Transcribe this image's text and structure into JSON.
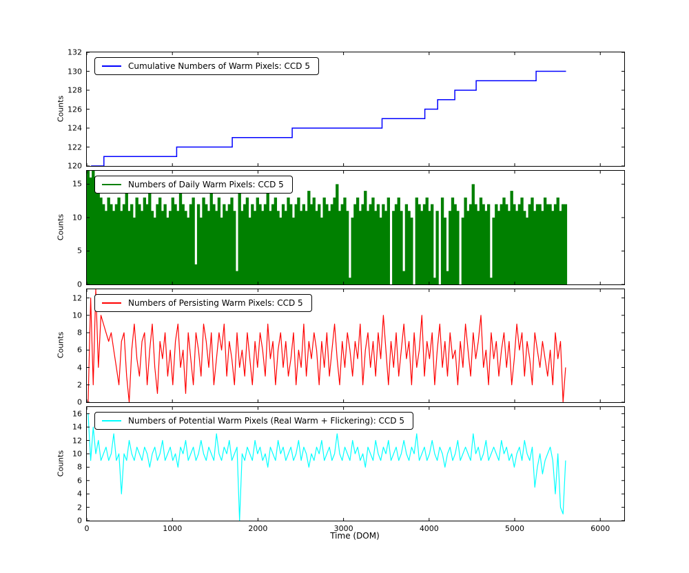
{
  "figure": {
    "background": "#ffffff",
    "xlabel": "Time (DOM)",
    "xlim": [
      0,
      6280
    ],
    "x_ticks": [
      0,
      1000,
      2000,
      3000,
      4000,
      5000,
      6000
    ]
  },
  "chart_data": [
    {
      "type": "step",
      "name": "cumulative-warm-pixels",
      "legend_label": "Cumulative Numbers of Warm Pixels: CCD 5",
      "color": "#0000ff",
      "ylabel": "Counts",
      "ylim": [
        120,
        132
      ],
      "yticks": [
        120,
        122,
        124,
        126,
        128,
        130,
        132
      ],
      "legend_position": "upper left",
      "grid": false,
      "points": [
        [
          50,
          120
        ],
        [
          200,
          121
        ],
        [
          1050,
          122
        ],
        [
          1700,
          123
        ],
        [
          2400,
          124
        ],
        [
          3450,
          125
        ],
        [
          3950,
          126
        ],
        [
          4100,
          127
        ],
        [
          4300,
          128
        ],
        [
          4550,
          129
        ],
        [
          5250,
          130
        ],
        [
          5600,
          130
        ]
      ]
    },
    {
      "type": "bar",
      "name": "daily-warm-pixels",
      "legend_label": "Numbers of Daily Warm Pixels: CCD 5",
      "color": "#008000",
      "ylabel": "Counts",
      "ylim": [
        0,
        17
      ],
      "yticks": [
        0,
        5,
        10,
        15
      ],
      "legend_position": "upper left",
      "grid": false,
      "x_start": 15,
      "x_step": 30,
      "values": [
        17,
        16,
        17,
        15,
        14,
        13,
        12,
        11,
        13,
        12,
        11,
        12,
        13,
        11,
        12,
        14,
        11,
        12,
        10,
        13,
        12,
        11,
        13,
        12,
        15,
        11,
        10,
        12,
        13,
        11,
        12,
        10,
        11,
        13,
        12,
        11,
        14,
        12,
        11,
        10,
        12,
        13,
        3,
        12,
        10,
        13,
        12,
        11,
        15,
        12,
        11,
        13,
        10,
        12,
        11,
        12,
        13,
        11,
        2,
        14,
        11,
        12,
        13,
        10,
        12,
        11,
        13,
        12,
        11,
        12,
        15,
        11,
        12,
        13,
        11,
        10,
        12,
        11,
        13,
        12,
        10,
        12,
        13,
        11,
        12,
        11,
        14,
        12,
        13,
        11,
        12,
        10,
        13,
        12,
        11,
        12,
        13,
        15,
        11,
        12,
        13,
        11,
        1,
        10,
        12,
        13,
        11,
        12,
        14,
        11,
        12,
        13,
        11,
        12,
        10,
        12,
        11,
        13,
        0,
        11,
        12,
        13,
        11,
        2,
        12,
        11,
        10,
        0,
        13,
        12,
        11,
        12,
        13,
        11,
        12,
        1,
        11,
        0,
        13,
        10,
        2,
        11,
        13,
        12,
        11,
        0,
        10,
        13,
        11,
        12,
        15,
        12,
        11,
        13,
        12,
        11,
        12,
        1,
        10,
        12,
        11,
        12,
        13,
        12,
        11,
        14,
        12,
        11,
        12,
        13,
        11,
        10,
        12,
        13,
        11,
        12,
        12,
        11,
        13,
        12,
        12,
        11,
        12,
        13,
        11,
        12,
        12
      ]
    },
    {
      "type": "line",
      "name": "persisting-warm-pixels",
      "legend_label": "Numbers of Persisting Warm Pixels: CCD 5",
      "color": "#ff0000",
      "ylabel": "Counts",
      "ylim": [
        0,
        13
      ],
      "yticks": [
        0,
        2,
        4,
        6,
        8,
        10,
        12
      ],
      "legend_position": "upper left",
      "grid": false,
      "x_start": 15,
      "x_step": 30,
      "values": [
        0,
        12,
        2,
        13,
        4,
        10,
        9,
        8,
        7,
        8,
        6,
        4,
        2,
        7,
        8,
        3,
        0,
        6,
        9,
        5,
        3,
        7,
        8,
        2,
        6,
        9,
        4,
        1,
        7,
        5,
        8,
        3,
        6,
        2,
        7,
        9,
        4,
        6,
        1,
        8,
        5,
        2,
        8,
        6,
        3,
        9,
        7,
        4,
        8,
        2,
        5,
        8,
        6,
        9,
        3,
        7,
        5,
        2,
        8,
        4,
        6,
        3,
        8,
        5,
        2,
        7,
        4,
        8,
        6,
        3,
        9,
        5,
        7,
        2,
        6,
        8,
        4,
        7,
        3,
        5,
        8,
        2,
        6,
        4,
        9,
        3,
        7,
        5,
        8,
        6,
        2,
        7,
        4,
        8,
        3,
        6,
        9,
        5,
        2,
        7,
        4,
        8,
        6,
        3,
        7,
        5,
        9,
        2,
        6,
        8,
        4,
        7,
        3,
        8,
        5,
        10,
        6,
        2,
        7,
        4,
        8,
        3,
        6,
        9,
        5,
        7,
        2,
        8,
        4,
        6,
        10,
        3,
        7,
        5,
        8,
        2,
        6,
        9,
        4,
        7,
        3,
        8,
        5,
        6,
        2,
        7,
        4,
        9,
        6,
        3,
        8,
        5,
        7,
        10,
        4,
        6,
        2,
        8,
        5,
        7,
        3,
        6,
        8,
        4,
        7,
        2,
        5,
        9,
        6,
        8,
        3,
        7,
        5,
        2,
        8,
        6,
        4,
        7,
        5,
        3,
        6,
        2,
        8,
        5,
        7,
        0,
        4
      ]
    },
    {
      "type": "line",
      "name": "potential-warm-pixels",
      "legend_label": "Numbers of Potential Warm Pixels (Real Warm + Flickering): CCD 5",
      "color": "#00ffff",
      "ylabel": "Counts",
      "ylim": [
        0,
        17
      ],
      "yticks": [
        0,
        2,
        4,
        6,
        8,
        10,
        12,
        14,
        16
      ],
      "legend_position": "upper left",
      "grid": false,
      "show_x_labels": true,
      "x_start": 15,
      "x_step": 30,
      "values": [
        16,
        9,
        14,
        10,
        12,
        9,
        10,
        11,
        9,
        10,
        13,
        9,
        10,
        4,
        10,
        9,
        12,
        10,
        9,
        11,
        10,
        9,
        11,
        10,
        8,
        10,
        11,
        9,
        10,
        12,
        9,
        10,
        11,
        9,
        10,
        8,
        11,
        10,
        12,
        9,
        10,
        11,
        9,
        10,
        12,
        10,
        9,
        11,
        10,
        9,
        13,
        10,
        9,
        11,
        10,
        12,
        9,
        10,
        11,
        0,
        10,
        9,
        11,
        10,
        9,
        12,
        10,
        11,
        9,
        10,
        8,
        11,
        10,
        9,
        12,
        10,
        11,
        9,
        10,
        11,
        9,
        10,
        12,
        9,
        11,
        10,
        8,
        10,
        9,
        11,
        10,
        12,
        9,
        10,
        11,
        9,
        10,
        13,
        10,
        9,
        11,
        10,
        9,
        12,
        10,
        11,
        9,
        10,
        8,
        11,
        10,
        9,
        12,
        10,
        9,
        11,
        10,
        12,
        9,
        10,
        11,
        9,
        10,
        12,
        10,
        9,
        11,
        10,
        13,
        9,
        10,
        11,
        9,
        10,
        12,
        10,
        9,
        11,
        10,
        8,
        10,
        11,
        9,
        10,
        12,
        9,
        10,
        11,
        10,
        9,
        13,
        10,
        11,
        9,
        10,
        12,
        9,
        10,
        11,
        10,
        9,
        12,
        10,
        11,
        9,
        10,
        8,
        10,
        11,
        9,
        12,
        10,
        9,
        11,
        5,
        8,
        10,
        7,
        9,
        10,
        11,
        9,
        4,
        10,
        2,
        1,
        9
      ]
    }
  ]
}
